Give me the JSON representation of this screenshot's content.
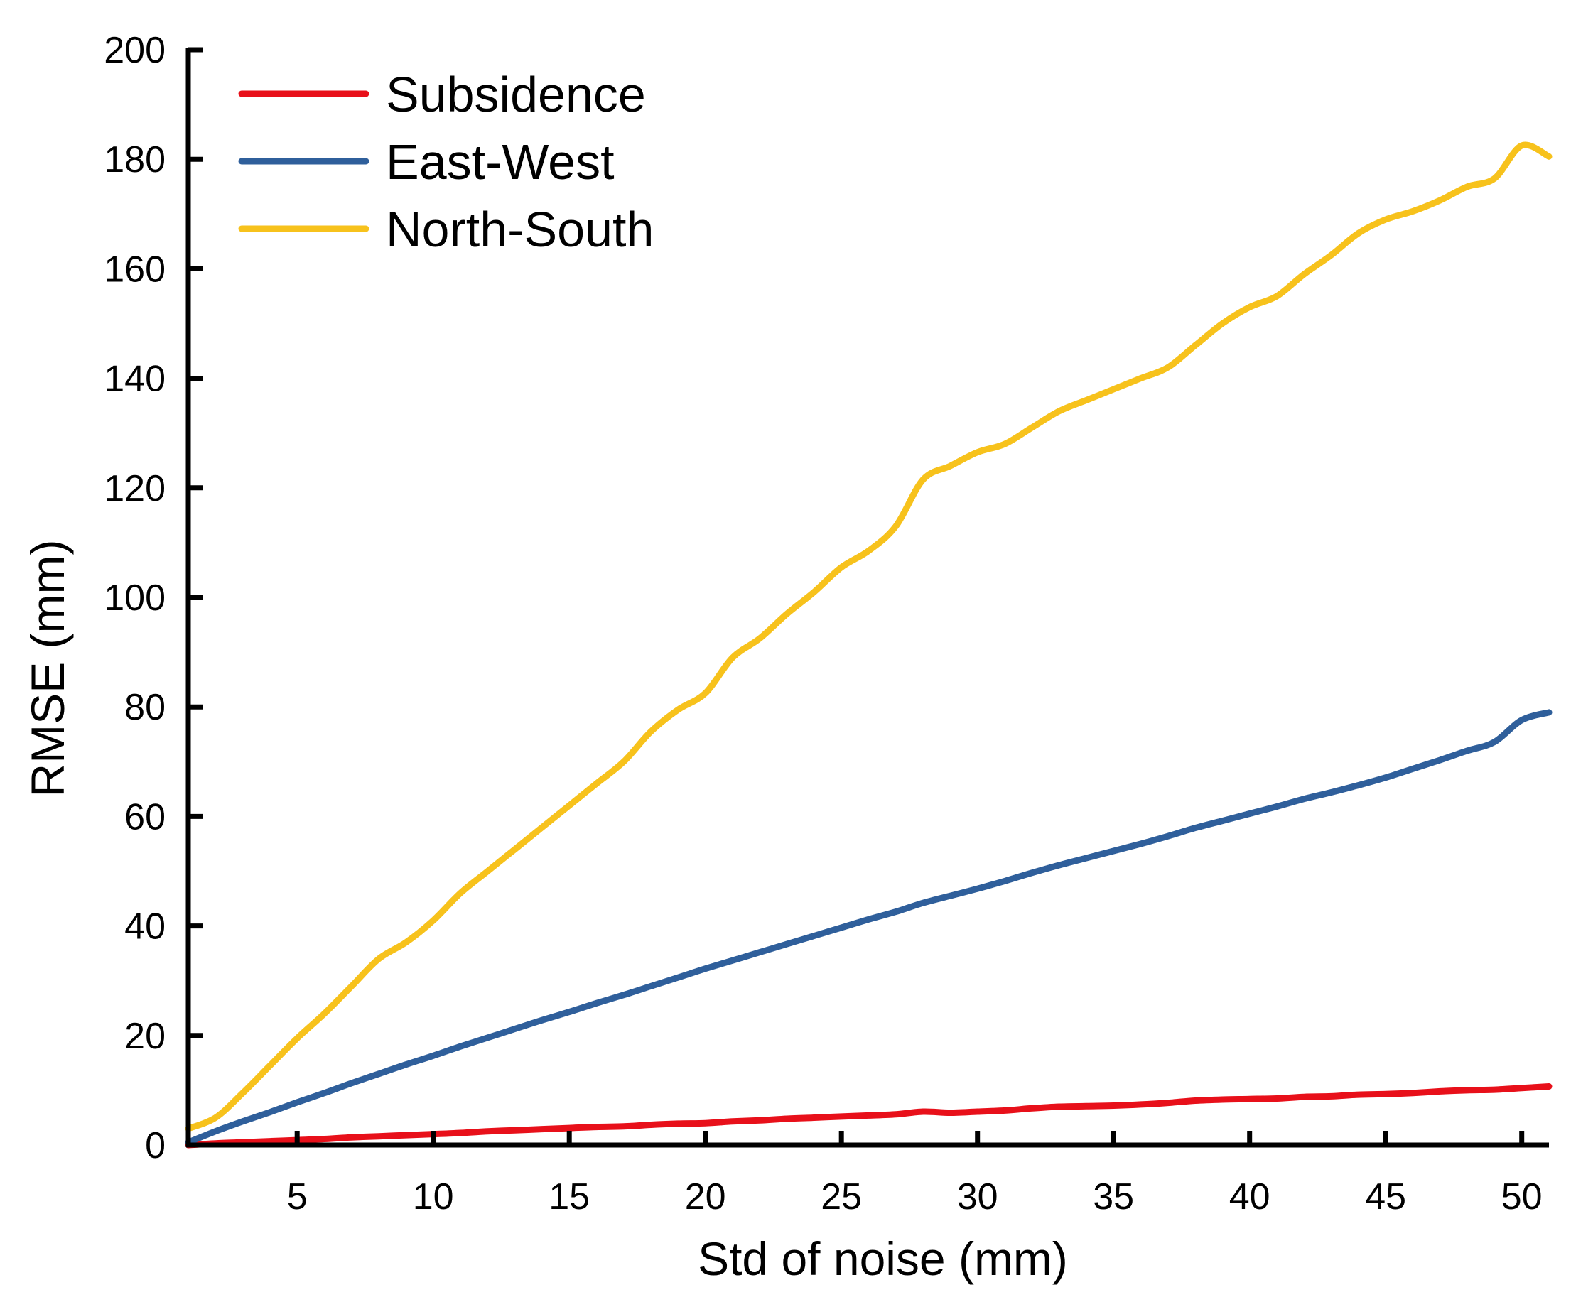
{
  "chart_data": {
    "type": "line",
    "title": "",
    "xlabel": "Std of noise (mm)",
    "ylabel": "RMSE (mm)",
    "xlim": [
      1,
      51
    ],
    "ylim": [
      0,
      200
    ],
    "xticks": [
      5,
      10,
      15,
      20,
      25,
      30,
      35,
      40,
      45,
      50
    ],
    "yticks": [
      0,
      20,
      40,
      60,
      80,
      100,
      120,
      140,
      160,
      180,
      200
    ],
    "legend_position": "top-left",
    "grid": false,
    "series": [
      {
        "name": "Subsidence",
        "color": "#e8101a",
        "x": [
          1,
          2,
          3,
          4,
          5,
          6,
          7,
          8,
          9,
          10,
          11,
          12,
          13,
          14,
          15,
          16,
          17,
          18,
          19,
          20,
          21,
          22,
          23,
          24,
          25,
          26,
          27,
          28,
          29,
          30,
          31,
          32,
          33,
          34,
          35,
          36,
          37,
          38,
          39,
          40,
          41,
          42,
          43,
          44,
          45,
          46,
          47,
          48,
          49,
          50,
          51
        ],
        "y": [
          0.0,
          0.3,
          0.5,
          0.7,
          0.9,
          1.1,
          1.4,
          1.6,
          1.8,
          2.0,
          2.2,
          2.5,
          2.7,
          2.9,
          3.1,
          3.3,
          3.4,
          3.7,
          3.9,
          4.0,
          4.3,
          4.5,
          4.8,
          5.0,
          5.2,
          5.4,
          5.6,
          6.1,
          5.9,
          6.1,
          6.3,
          6.7,
          7.0,
          7.1,
          7.2,
          7.4,
          7.7,
          8.1,
          8.3,
          8.4,
          8.5,
          8.8,
          8.9,
          9.2,
          9.3,
          9.5,
          9.8,
          10.0,
          10.1,
          10.4,
          10.7
        ]
      },
      {
        "name": "East-West",
        "color": "#2f5f9b",
        "x": [
          1,
          2,
          3,
          4,
          5,
          6,
          7,
          8,
          9,
          10,
          11,
          12,
          13,
          14,
          15,
          16,
          17,
          18,
          19,
          20,
          21,
          22,
          23,
          24,
          25,
          26,
          27,
          28,
          29,
          30,
          31,
          32,
          33,
          34,
          35,
          36,
          37,
          38,
          39,
          40,
          41,
          42,
          43,
          44,
          45,
          46,
          47,
          48,
          49,
          50,
          51
        ],
        "y": [
          0.5,
          2.5,
          4.3,
          6.0,
          7.8,
          9.5,
          11.3,
          13.0,
          14.7,
          16.3,
          18.0,
          19.6,
          21.2,
          22.8,
          24.3,
          25.9,
          27.4,
          29.0,
          30.6,
          32.2,
          33.7,
          35.2,
          36.7,
          38.2,
          39.7,
          41.2,
          42.6,
          44.2,
          45.5,
          46.8,
          48.2,
          49.7,
          51.1,
          52.4,
          53.7,
          55.0,
          56.4,
          57.9,
          59.2,
          60.5,
          61.8,
          63.2,
          64.4,
          65.7,
          67.1,
          68.7,
          70.3,
          72.0,
          73.6,
          77.6,
          79.0
        ]
      },
      {
        "name": "North-South",
        "color": "#f7c21c",
        "x": [
          1,
          2,
          3,
          4,
          5,
          6,
          7,
          8,
          9,
          10,
          11,
          12,
          13,
          14,
          15,
          16,
          17,
          18,
          19,
          20,
          21,
          22,
          23,
          24,
          25,
          26,
          27,
          28,
          29,
          30,
          31,
          32,
          33,
          34,
          35,
          36,
          37,
          38,
          39,
          40,
          41,
          42,
          43,
          44,
          45,
          46,
          47,
          48,
          49,
          50,
          51
        ],
        "y": [
          3.0,
          5.0,
          9.5,
          14.5,
          19.5,
          24.0,
          29.0,
          34.0,
          37.0,
          41.0,
          46.0,
          50.0,
          54.0,
          58.0,
          62.0,
          66.0,
          70.0,
          75.5,
          79.5,
          82.5,
          89.0,
          92.5,
          97.0,
          101.0,
          105.5,
          108.5,
          113.0,
          121.5,
          124.0,
          126.5,
          128.0,
          131.0,
          134.0,
          136.0,
          138.0,
          140.0,
          142.0,
          146.0,
          150.0,
          153.0,
          155.0,
          159.0,
          162.5,
          166.5,
          169.0,
          170.5,
          172.5,
          175.0,
          176.5,
          182.5,
          180.5
        ]
      }
    ]
  }
}
